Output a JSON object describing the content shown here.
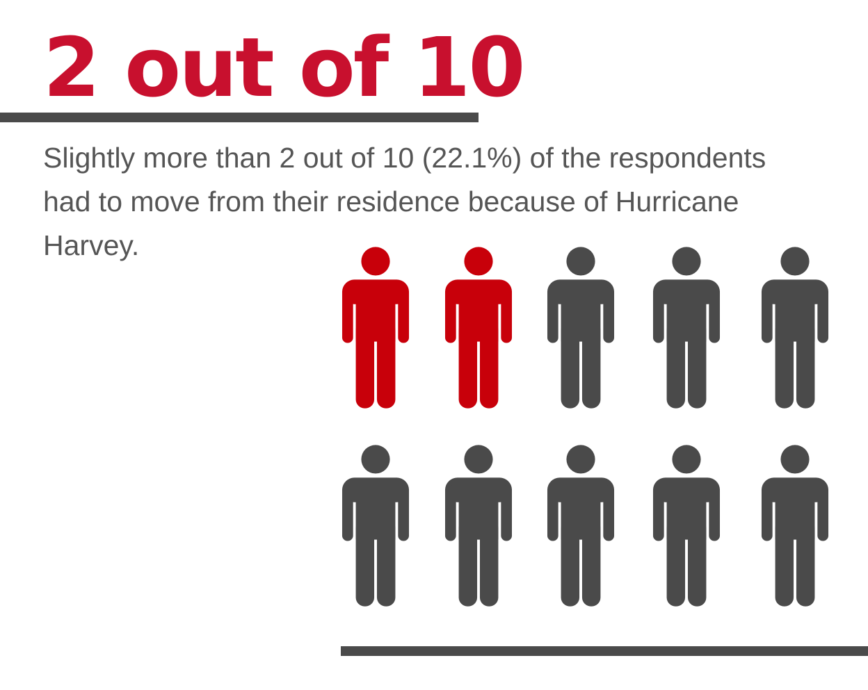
{
  "headline": "2 out of 10",
  "description": "Slightly more than 2 out of 10 (22.1%) of the respondents had to move from their residence because of Hurricane Harvey.",
  "pictogram": {
    "total": 10,
    "highlighted": 2,
    "highlight_color": "#c8000a",
    "base_color": "#4a4a4a",
    "icon": "person-icon"
  }
}
